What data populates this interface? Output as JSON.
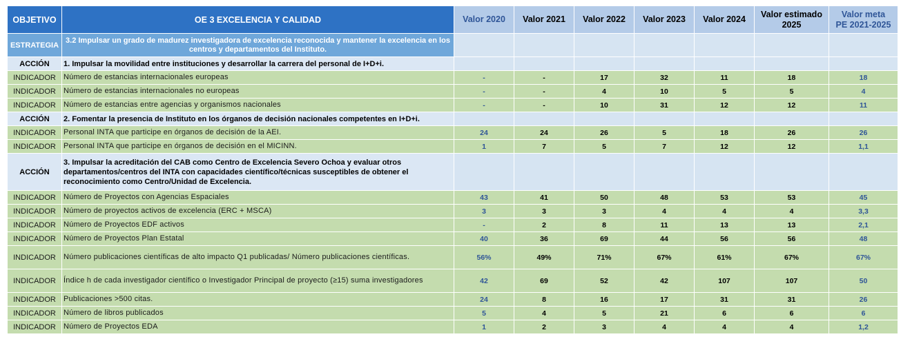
{
  "header": {
    "objetivo": "OBJETIVO",
    "titulo": "OE 3 EXCELENCIA Y CALIDAD",
    "col2020": "Valor 2020",
    "col2021": "Valor 2021",
    "col2022": "Valor 2022",
    "col2023": "Valor 2023",
    "col2024": "Valor 2024",
    "col2025_l1": "Valor estimado",
    "col2025_l2": "2025",
    "colmeta_l1": "Valor meta",
    "colmeta_l2": "PE 2021-2025"
  },
  "estrategia": {
    "label": "ESTRATEGIA",
    "text": "3.2 Impulsar un grado de madurez investigadora de excelencia reconocida y mantener la excelencia en los centros y departamentos del Instituto."
  },
  "acciones": [
    {
      "label": "ACCIÓN",
      "text": "1. Impulsar la movilidad entre instituciones y desarrollar la carrera del personal de I+D+i.",
      "indicadores": [
        {
          "label": "INDICADOR",
          "text": "Número de estancias internacionales europeas",
          "v2020": "-",
          "v2021": "-",
          "v2022": "17",
          "v2023": "32",
          "v2024": "11",
          "v2025": "18",
          "meta": "18"
        },
        {
          "label": "INDICADOR",
          "text": "Número de estancias internacionales no europeas",
          "v2020": "-",
          "v2021": "-",
          "v2022": "4",
          "v2023": "10",
          "v2024": "5",
          "v2025": "5",
          "meta": "4"
        },
        {
          "label": "INDICADOR",
          "text": "Número de estancias entre agencias y organismos nacionales",
          "v2020": "-",
          "v2021": "-",
          "v2022": "10",
          "v2023": "31",
          "v2024": "12",
          "v2025": "12",
          "meta": "11"
        }
      ]
    },
    {
      "label": "ACCIÓN",
      "text": "2. Fomentar la presencia de Instituto en los órganos de decisión nacionales competentes en I+D+i.",
      "indicadores": [
        {
          "label": "INDICADOR",
          "text": "Personal INTA que participe en órganos de decisión de la AEI.",
          "v2020": "24",
          "v2021": "24",
          "v2022": "26",
          "v2023": "5",
          "v2024": "18",
          "v2025": "26",
          "meta": "26"
        },
        {
          "label": "INDICADOR",
          "text": "Personal INTA que participe en órganos de decisión en el MICINN.",
          "v2020": "1",
          "v2021": "7",
          "v2022": "5",
          "v2023": "7",
          "v2024": "12",
          "v2025": "12",
          "meta": "1,1"
        }
      ]
    },
    {
      "label": "ACCIÓN",
      "text": "3. Impulsar la acreditación del CAB como Centro de Excelencia Severo Ochoa y evaluar otros departamentos/centros del INTA con capacidades científico/técnicas susceptibles de obtener el reconocimiento como Centro/Unidad de Excelencia.",
      "indicadores": [
        {
          "label": "INDICADOR",
          "text": "Número de Proyectos con Agencias Espaciales",
          "v2020": "43",
          "v2021": "41",
          "v2022": "50",
          "v2023": "48",
          "v2024": "53",
          "v2025": "53",
          "meta": "45"
        },
        {
          "label": "INDICADOR",
          "text": "Número de proyectos activos de excelencia (ERC + MSCA)",
          "v2020": "3",
          "v2021": "3",
          "v2022": "3",
          "v2023": "4",
          "v2024": "4",
          "v2025": "4",
          "meta": "3,3"
        },
        {
          "label": "INDICADOR",
          "text": "Número de Proyectos EDF activos",
          "v2020": "-",
          "v2021": "2",
          "v2022": "8",
          "v2023": "11",
          "v2024": "13",
          "v2025": "13",
          "meta": "2,1"
        },
        {
          "label": "INDICADOR",
          "text": "Número de Proyectos Plan Estatal",
          "v2020": "40",
          "v2021": "36",
          "v2022": "69",
          "v2023": "44",
          "v2024": "56",
          "v2025": "56",
          "meta": "48"
        },
        {
          "label": "INDICADOR",
          "text": "Número publicaciones científicas de alto impacto Q1 publicadas/ Número publicaciones científicas.",
          "v2020": "56%",
          "v2021": "49%",
          "v2022": "71%",
          "v2023": "67%",
          "v2024": "61%",
          "v2025": "67%",
          "meta": "67%"
        },
        {
          "label": "INDICADOR",
          "text": "Índice h de cada investigador científico o Investigador Principal de proyecto (≥15) suma investigadores",
          "v2020": "42",
          "v2021": "69",
          "v2022": "52",
          "v2023": "42",
          "v2024": "107",
          "v2025": "107",
          "meta": "50"
        },
        {
          "label": "INDICADOR",
          "text": "Publicaciones >500 citas.",
          "v2020": "24",
          "v2021": "8",
          "v2022": "16",
          "v2023": "17",
          "v2024": "31",
          "v2025": "31",
          "meta": "26"
        },
        {
          "label": "INDICADOR",
          "text": "Número de libros publicados",
          "v2020": "5",
          "v2021": "4",
          "v2022": "5",
          "v2023": "21",
          "v2024": "6",
          "v2025": "6",
          "meta": "6"
        },
        {
          "label": "INDICADOR",
          "text": "Número de Proyectos EDA",
          "v2020": "1",
          "v2021": "2",
          "v2022": "3",
          "v2023": "4",
          "v2024": "4",
          "v2025": "4",
          "meta": "1,2"
        }
      ]
    }
  ]
}
